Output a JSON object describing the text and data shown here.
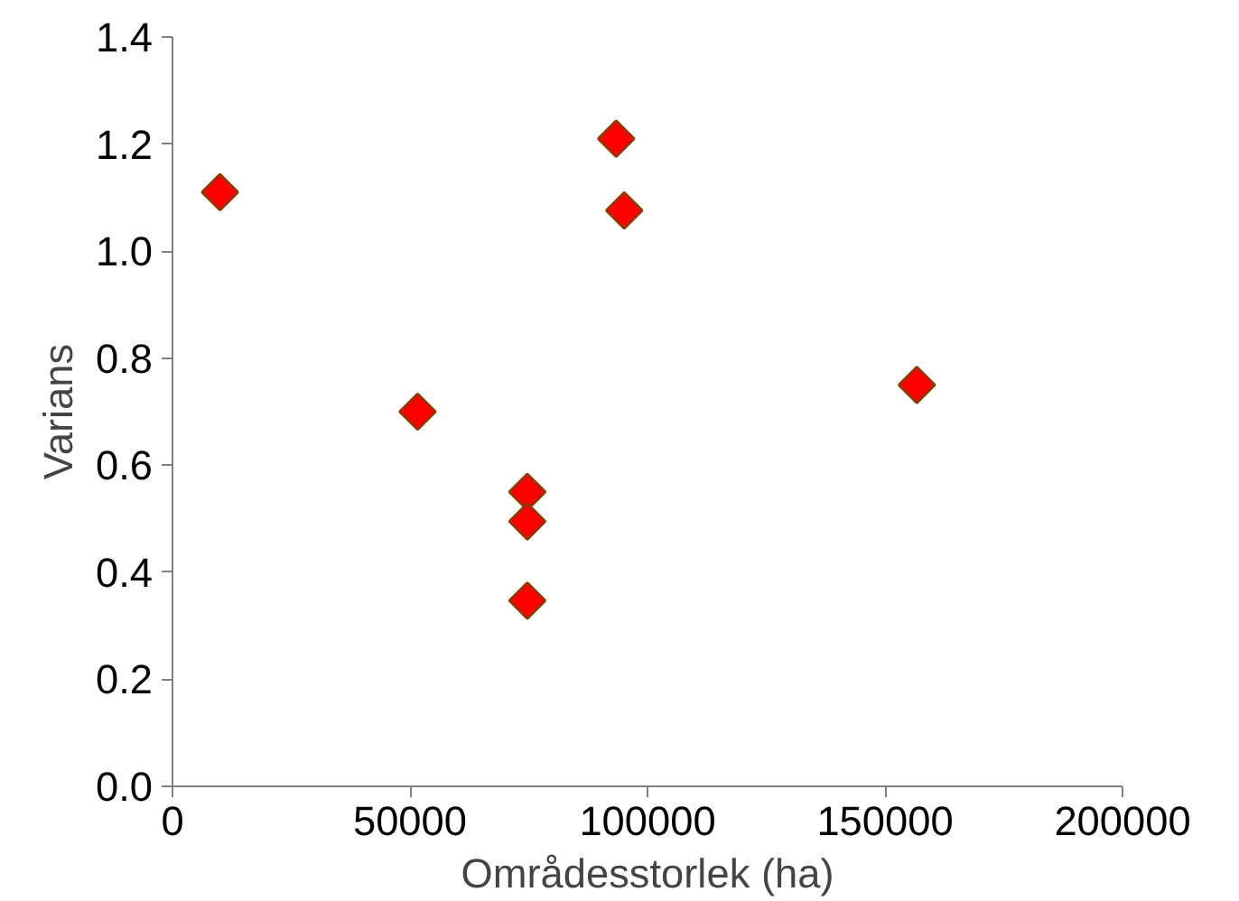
{
  "chart_data": {
    "type": "scatter",
    "xlabel": "Områdesstorlek (ha)",
    "ylabel": "Varians",
    "x": [
      10000,
      51600,
      74700,
      74700,
      74700,
      93400,
      95100,
      156700
    ],
    "series": [
      {
        "color": "#ff0000",
        "values": [
          1.11,
          0.7,
          0.55,
          0.495,
          0.347,
          1.21,
          1.076,
          0.75
        ]
      }
    ],
    "xlim": [
      0,
      200000
    ],
    "xticks": [
      0,
      50000,
      100000,
      150000,
      200000
    ],
    "ylim": [
      0,
      1.4
    ],
    "yticks": [
      {
        "value": 0,
        "label": "0.0"
      },
      {
        "value": 0.2,
        "label": "0.2"
      },
      {
        "value": 0.4,
        "label": "0.4"
      },
      {
        "value": 0.6,
        "label": "0.6"
      },
      {
        "value": 0.8,
        "label": "0.8"
      },
      {
        "value": 1.0,
        "label": "1.0"
      },
      {
        "value": 1.2,
        "label": "1.2"
      },
      {
        "value": 1.4,
        "label": "1.4"
      }
    ],
    "marker": "diamond",
    "grid": false
  }
}
